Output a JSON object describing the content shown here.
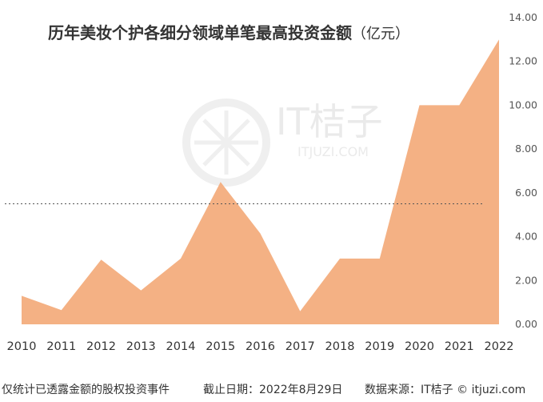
{
  "chart_data": {
    "type": "area",
    "title": "历年美妆个护各细分领域单笔最高投资金额",
    "title_unit": "（亿元）",
    "x": [
      "2010",
      "2011",
      "2012",
      "2013",
      "2014",
      "2015",
      "2016",
      "2017",
      "2018",
      "2019",
      "2020",
      "2021",
      "2022"
    ],
    "values": [
      1.3,
      0.65,
      2.95,
      1.55,
      3.0,
      6.5,
      4.15,
      0.6,
      3.0,
      3.0,
      10.0,
      10.0,
      13.0
    ],
    "y_ticks": [
      "14.00",
      "12.00",
      "10.00",
      "8.00",
      "6.00",
      "4.00",
      "2.00",
      "0.00"
    ],
    "ylim": [
      0,
      14
    ],
    "reference_line": 5.5,
    "y_axis_position": "right",
    "grid": false,
    "fill_color": "#f4b184"
  },
  "watermark": {
    "brand": "IT桔子",
    "domain": "ITJUZI.COM"
  },
  "footer": {
    "note": "仅统计已透露金额的股权投资事件",
    "date": "截止日期：2022年8月29日",
    "source": "数据来源：IT桔子 © itjuzi.com"
  }
}
